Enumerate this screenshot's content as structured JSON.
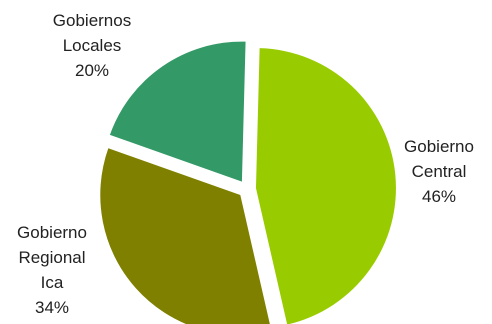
{
  "chart_data": {
    "type": "pie",
    "title": "",
    "slices": [
      {
        "label_lines": [
          "Gobierno",
          "Central"
        ],
        "value": 46,
        "value_text": "46%",
        "color": "#99cc00"
      },
      {
        "label_lines": [
          "Gobierno",
          "Regional",
          "Ica"
        ],
        "value": 34,
        "value_text": "34%",
        "color": "#808000"
      },
      {
        "label_lines": [
          "Gobiernos",
          "Locales"
        ],
        "value": 20,
        "value_text": "20%",
        "color": "#339966"
      }
    ],
    "legend": "none",
    "exploded": true
  }
}
